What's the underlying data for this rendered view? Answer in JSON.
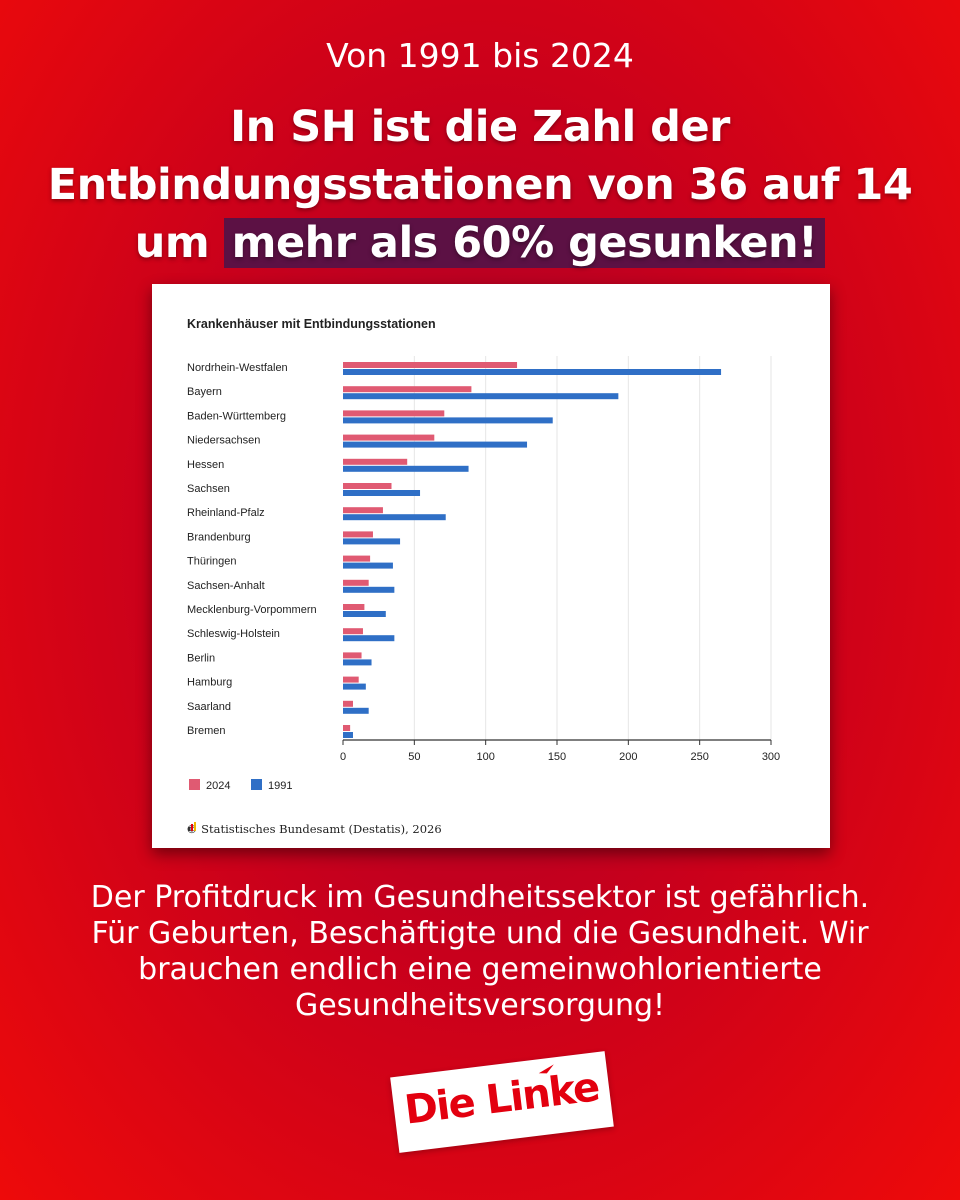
{
  "header": {
    "subtitle": "Von 1991 bis 2024",
    "headline_plain": "In SH ist die Zahl der Entbindungsstationen von 36 auf 14 um",
    "headline_highlight": "mehr als 60% gesunken!"
  },
  "body_text": "Der Profitdruck im Gesundheitssektor ist gefährlich. Für Geburten, Beschäftigte und die Gesundheit. Wir brauchen endlich eine gemeinwohlorientierte Gesundheitsversorgung!",
  "logo": {
    "text": "Die Linke",
    "color": "#e3000f"
  },
  "credit": "Statistisches Bundesamt (Destatis), 2026",
  "colors": {
    "bar_2024": "#e05a72",
    "bar_1991": "#2f6fc6",
    "background": "#c8001c",
    "highlight": "#5c1144"
  },
  "chart_data": {
    "type": "bar",
    "orientation": "horizontal",
    "title": "Krankenhäuser mit Entbindungsstationen",
    "categories": [
      "Nordrhein-Westfalen",
      "Bayern",
      "Baden-Württemberg",
      "Niedersachsen",
      "Hessen",
      "Sachsen",
      "Rheinland-Pfalz",
      "Brandenburg",
      "Thüringen",
      "Sachsen-Anhalt",
      "Mecklenburg-Vorpommern",
      "Schleswig-Holstein",
      "Berlin",
      "Hamburg",
      "Saarland",
      "Bremen"
    ],
    "series": [
      {
        "name": "2024",
        "color": "#e05a72",
        "values": [
          122,
          90,
          71,
          64,
          45,
          34,
          28,
          21,
          19,
          18,
          15,
          14,
          13,
          11,
          7,
          5
        ]
      },
      {
        "name": "1991",
        "color": "#2f6fc6",
        "values": [
          265,
          193,
          147,
          129,
          88,
          54,
          72,
          40,
          35,
          36,
          30,
          36,
          20,
          16,
          18,
          7
        ]
      }
    ],
    "xticks": [
      0,
      50,
      100,
      150,
      200,
      250,
      300
    ],
    "xlim": [
      0,
      300
    ],
    "grid": true,
    "legend": "bottom-left"
  }
}
